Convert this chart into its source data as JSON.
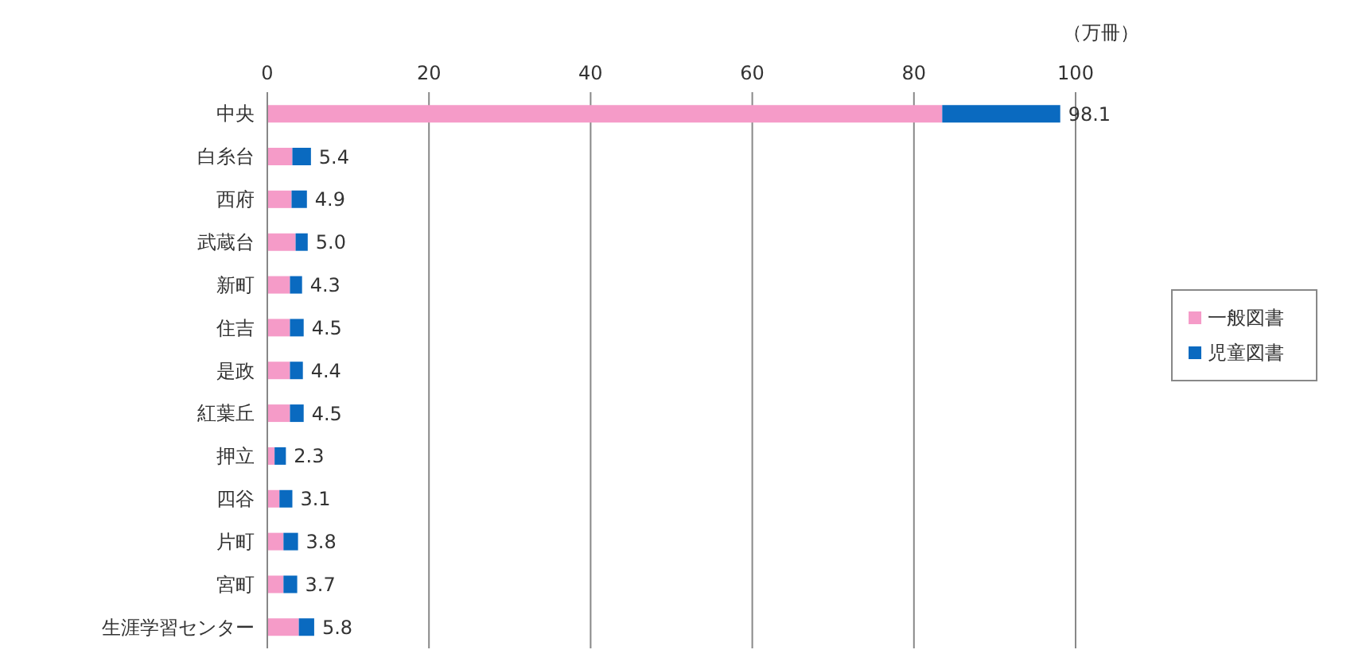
{
  "chart_data": {
    "type": "bar",
    "orientation": "horizontal",
    "stacked": true,
    "xlabel": "（万冊）",
    "categories": [
      "中央",
      "白糸台",
      "西府",
      "武蔵台",
      "新町",
      "住吉",
      "是政",
      "紅葉丘",
      "押立",
      "四谷",
      "片町",
      "宮町",
      "生涯学習センター"
    ],
    "series": [
      {
        "name": "一般図書",
        "color": "#f59bc8",
        "values": [
          83.5,
          3.1,
          3.0,
          3.5,
          2.8,
          2.8,
          2.8,
          2.8,
          0.9,
          1.5,
          2.0,
          2.0,
          3.9
        ]
      },
      {
        "name": "児童図書",
        "color": "#0a6ac0",
        "values": [
          14.6,
          2.3,
          1.9,
          1.5,
          1.5,
          1.7,
          1.6,
          1.7,
          1.4,
          1.6,
          1.8,
          1.7,
          1.9
        ]
      }
    ],
    "totals": [
      "98.1",
      "5.4",
      "4.9",
      "5.0",
      "4.3",
      "4.5",
      "4.4",
      "4.5",
      "2.3",
      "3.1",
      "3.8",
      "3.7",
      "5.8"
    ],
    "xlim": [
      0,
      100
    ],
    "xticks": [
      0,
      20,
      40,
      60,
      80,
      100
    ],
    "grid": "x",
    "legend": "right"
  }
}
